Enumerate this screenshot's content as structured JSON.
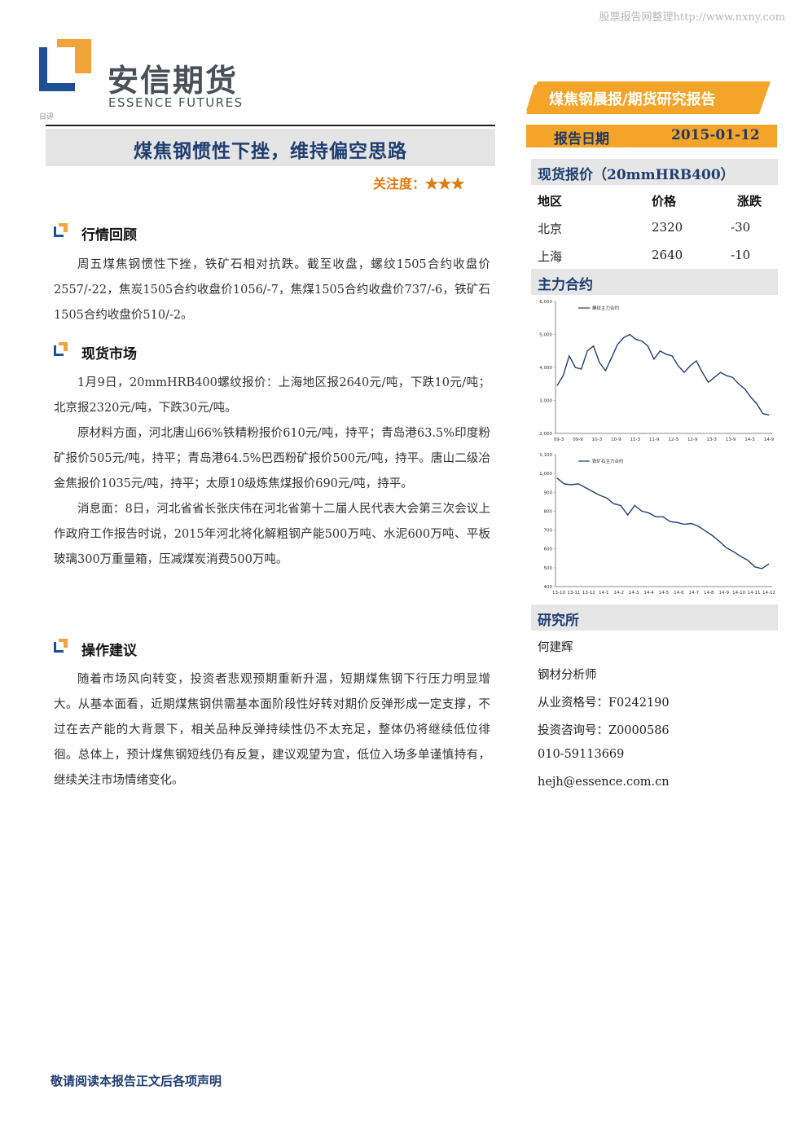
{
  "watermark": "股票报告网整理http://www.nxny.com",
  "brand": {
    "name_cn": "安信期货",
    "name_en": "ESSENCE FUTURES",
    "small_mark": "日评"
  },
  "report_type": "煤焦钢晨报/期货研究报告",
  "report_date": {
    "label": "报告日期",
    "value": "2015-01-12"
  },
  "title": "煤焦钢惯性下挫，维持偏空思路",
  "attention": {
    "label": "关注度：",
    "stars": "★★★"
  },
  "colors": {
    "navy": "#1f3e72",
    "orange": "#f4a428",
    "line": "#1f3e72",
    "star": "#e07b13"
  },
  "sections": [
    {
      "heading": "行情回顾",
      "paragraphs": [
        "周五煤焦钢惯性下挫，铁矿石相对抗跌。截至收盘，螺纹1505合约收盘价2557/-22，焦炭1505合约收盘价1056/-7，焦煤1505合约收盘价737/-6，铁矿石1505合约收盘价510/-2。"
      ]
    },
    {
      "heading": "现货市场",
      "paragraphs": [
        "1月9日，20mmHRB400螺纹报价：上海地区报2640元/吨，下跌10元/吨；北京报2320元/吨，下跌30元/吨。",
        "原材料方面，河北唐山66%铁精粉报价610元/吨，持平；青岛港63.5%印度粉矿报价505元/吨，持平；青岛港64.5%巴西粉矿报价500元/吨，持平。唐山二级冶金焦报价1035元/吨，持平；太原10级炼焦煤报价690元/吨，持平。",
        "消息面：8日，河北省省长张庆伟在河北省第十二届人民代表大会第三次会议上作政府工作报告时说，2015年河北将化解粗钢产能500万吨、水泥600万吨、平板玻璃300万重量箱，压减煤炭消费500万吨。"
      ]
    },
    {
      "heading": "操作建议",
      "paragraphs": [
        "随着市场风向转变，投资者悲观预期重新升温，短期煤焦钢下行压力明显增大。从基本面看，近期煤焦钢供需基本面阶段性好转对期价反弹形成一定支撑，不过在去产能的大背景下，相关品种反弹持续性仍不太充足，整体仍将继续低位徘徊。总体上，预计煤焦钢短线仍有反复，建议观望为宜，低位入场多单谨慎持有，继续关注市场情绪变化。"
      ]
    }
  ],
  "spot_price": {
    "header": "现货报价（20mmHRB400）",
    "columns": [
      "地区",
      "价格",
      "涨跌"
    ],
    "rows": [
      {
        "region": "北京",
        "price": "2320",
        "change": "-30"
      },
      {
        "region": "上海",
        "price": "2640",
        "change": "-10"
      }
    ]
  },
  "main_contract": {
    "header": "主力合约"
  },
  "chart_data": [
    {
      "type": "line",
      "legend": "螺纹主力合约",
      "series": [
        {
          "name": "螺纹主力合约"
        }
      ],
      "x": [
        "09-3",
        "09-5",
        "09-7",
        "09-9",
        "09-11",
        "10-1",
        "10-3",
        "10-5",
        "10-7",
        "10-9",
        "10-11",
        "11-1",
        "11-3",
        "11-5",
        "11-7",
        "11-9",
        "11-11",
        "12-1",
        "12-3",
        "12-5",
        "12-7",
        "12-9",
        "12-11",
        "13-1",
        "13-3",
        "13-5",
        "13-7",
        "13-9",
        "13-11",
        "14-1",
        "14-3",
        "14-5",
        "14-7",
        "14-9",
        "14-11",
        "15-1"
      ],
      "values": [
        3450,
        3750,
        4350,
        4000,
        3950,
        4500,
        4650,
        4150,
        3900,
        4300,
        4700,
        4900,
        5000,
        4850,
        4800,
        4650,
        4250,
        4500,
        4400,
        4350,
        4050,
        3850,
        4050,
        4200,
        3850,
        3550,
        3700,
        3850,
        3750,
        3700,
        3500,
        3350,
        3100,
        2900,
        2600,
        2560
      ],
      "x_ticks": [
        "09-3",
        "09-9",
        "10-3",
        "10-9",
        "11-3",
        "11-9",
        "12-3",
        "12-9",
        "13-3",
        "13-9",
        "14-3",
        "14-9"
      ],
      "y_ticks": [
        "6,000",
        "5,000",
        "4,000",
        "3,000",
        "2,000"
      ],
      "ylim": [
        2000,
        6000
      ]
    },
    {
      "type": "line",
      "legend": "铁矿石主力合约",
      "series": [
        {
          "name": "铁矿石主力合约"
        }
      ],
      "x": [
        "13-10",
        "13-10b",
        "13-11",
        "13-11b",
        "13-12",
        "13-12b",
        "14-1",
        "14-1b",
        "14-2",
        "14-2b",
        "14-3",
        "14-3b",
        "14-4",
        "14-4b",
        "14-5",
        "14-5b",
        "14-6",
        "14-6b",
        "14-7",
        "14-7b",
        "14-8",
        "14-8b",
        "14-9",
        "14-9b",
        "14-10",
        "14-10b",
        "14-11",
        "14-11b",
        "14-12",
        "14-12b",
        "15-1"
      ],
      "values": [
        975,
        945,
        940,
        945,
        925,
        905,
        885,
        870,
        840,
        830,
        780,
        830,
        800,
        790,
        770,
        770,
        745,
        740,
        730,
        735,
        720,
        695,
        670,
        640,
        605,
        585,
        560,
        540,
        505,
        495,
        520
      ],
      "x_ticks": [
        "13-10",
        "13-11",
        "13-12",
        "14-1",
        "14-2",
        "14-3",
        "14-4",
        "14-5",
        "14-6",
        "14-7",
        "14-8",
        "14-9",
        "14-10",
        "14-11",
        "14-12"
      ],
      "y_ticks": [
        "1,100",
        "1,000",
        "900",
        "800",
        "700",
        "600",
        "500",
        "400"
      ],
      "ylim": [
        400,
        1100
      ]
    }
  ],
  "research": {
    "header": "研究所",
    "analyst_name": "何建辉",
    "analyst_title": "钢材分析师",
    "qualification": "从业资格号：F0242190",
    "consulting": "投资咨询号：Z0000586",
    "phone": "010-59113669",
    "email": "hejh@essence.com.cn"
  },
  "footer": "敬请阅读本报告正文后各项声明"
}
